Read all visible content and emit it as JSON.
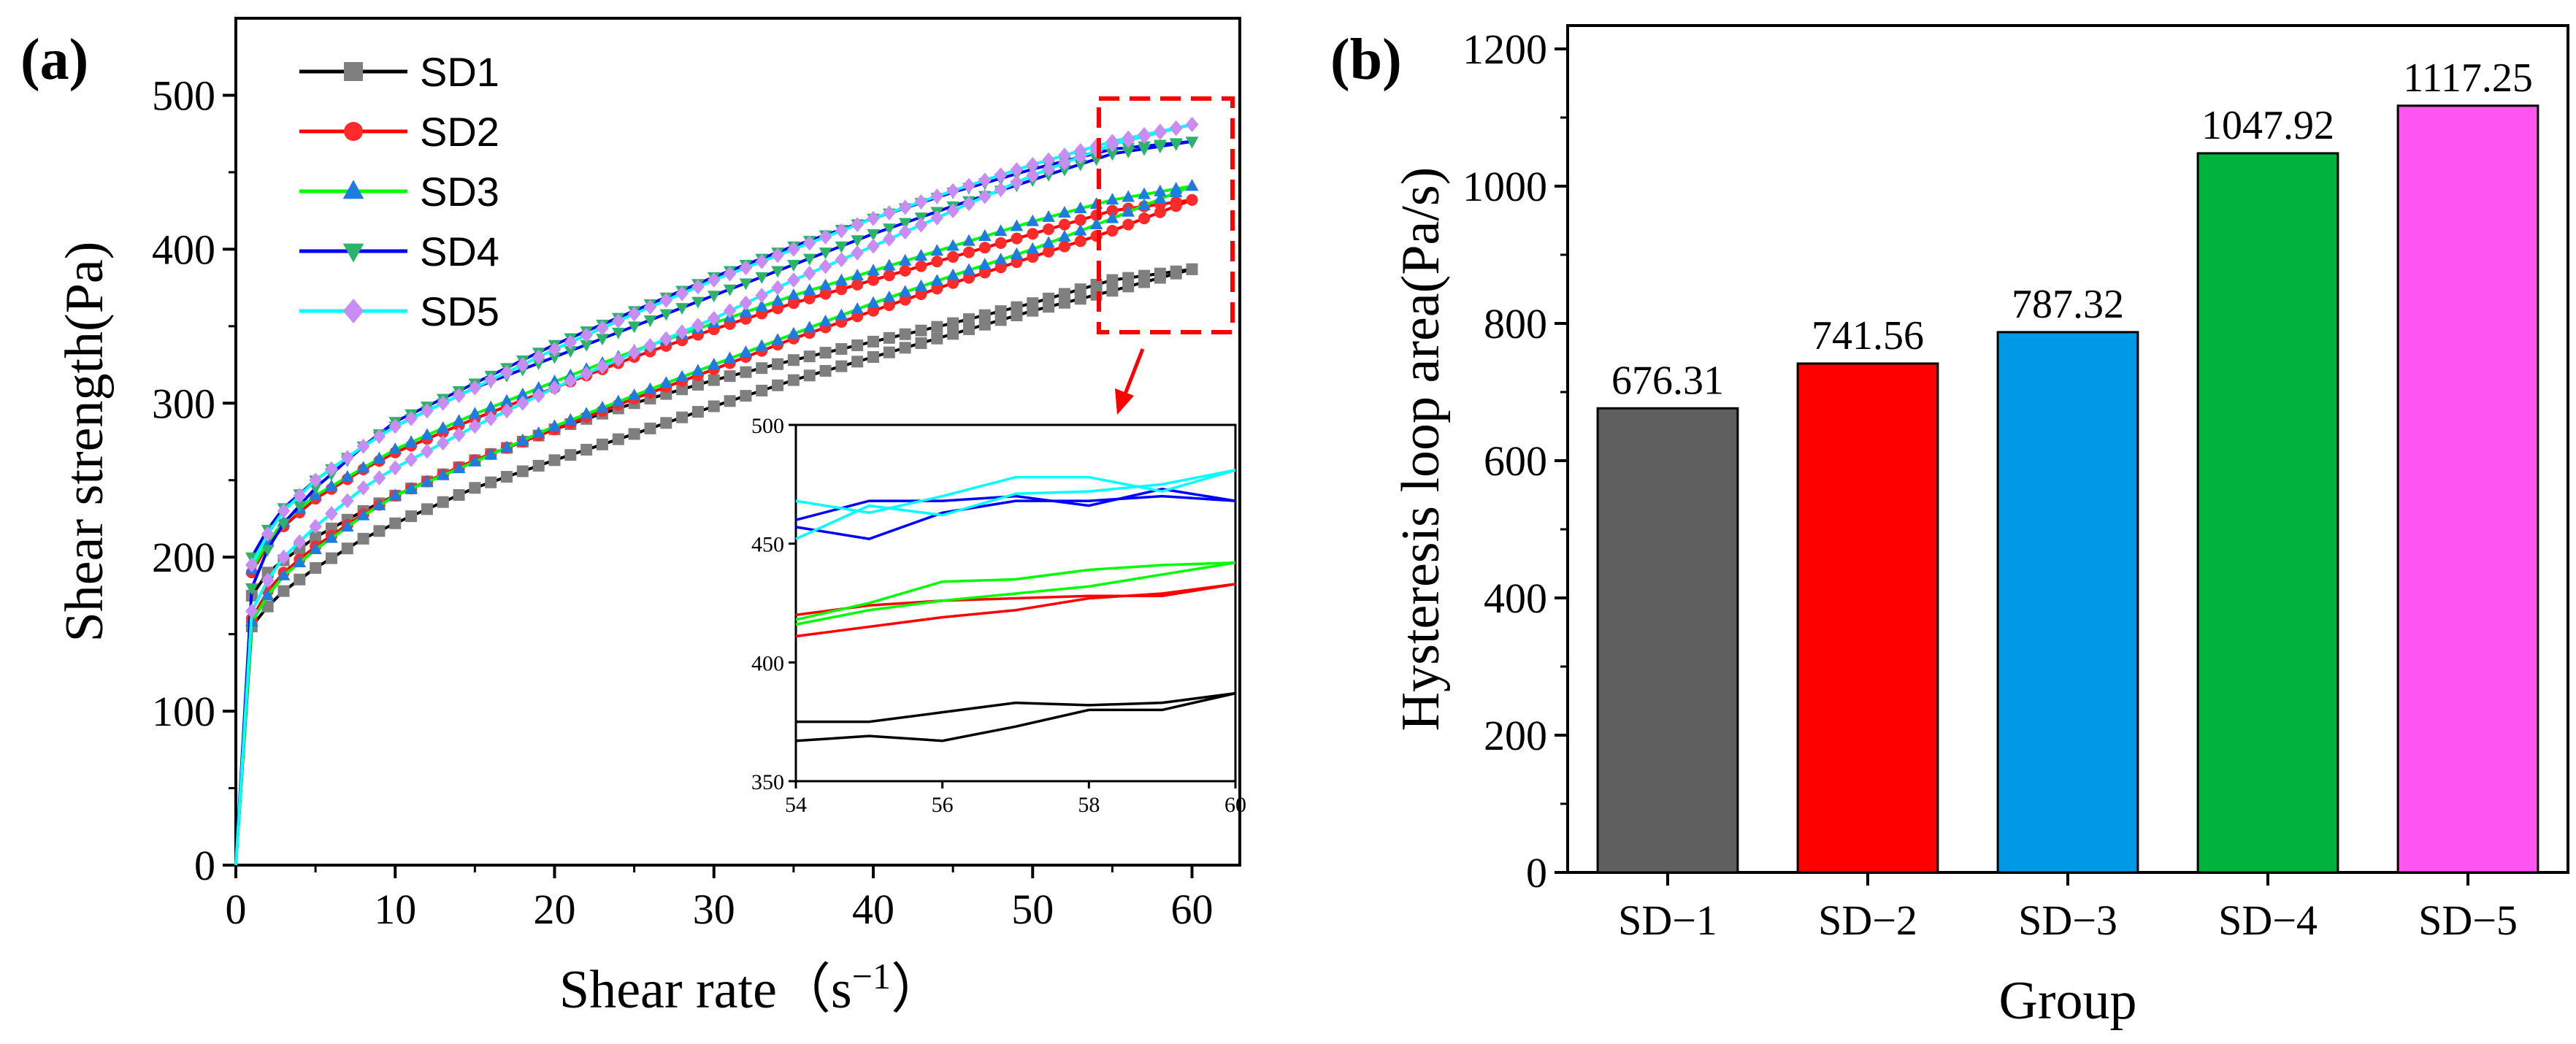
{
  "chart_data": [
    {
      "panel": "(a)",
      "type": "line",
      "xlabel": "Shear rate",
      "xunit": "（s",
      "xunit_exp": "−1",
      "xunit_close": "）",
      "ylabel": "Shear strength(Pa)",
      "xlim": [
        0,
        63
      ],
      "ylim": [
        0,
        550
      ],
      "xticks": [
        0,
        10,
        20,
        30,
        40,
        50,
        60
      ],
      "yticks": [
        0,
        100,
        200,
        300,
        400,
        500
      ],
      "series": [
        {
          "name": "SD1",
          "color": "#7f7f7f",
          "line_color": "#000000",
          "marker": "square",
          "up": [
            [
              0,
              0
            ],
            [
              1,
              155
            ],
            [
              2,
              168
            ],
            [
              3,
              178
            ],
            [
              5,
              193
            ],
            [
              8,
              212
            ],
            [
              10,
              222
            ],
            [
              15,
              245
            ],
            [
              20,
              263
            ],
            [
              25,
              280
            ],
            [
              30,
              298
            ],
            [
              35,
              315
            ],
            [
              40,
              330
            ],
            [
              45,
              345
            ],
            [
              50,
              360
            ],
            [
              55,
              373
            ],
            [
              60,
              387
            ]
          ],
          "down": [
            [
              60,
              387
            ],
            [
              55,
              380
            ],
            [
              50,
              365
            ],
            [
              45,
              352
            ],
            [
              40,
              340
            ],
            [
              35,
              328
            ],
            [
              30,
              315
            ],
            [
              25,
              300
            ],
            [
              20,
              283
            ],
            [
              15,
              263
            ],
            [
              10,
              240
            ],
            [
              8,
              230
            ],
            [
              5,
              213
            ],
            [
              3,
              198
            ],
            [
              2,
              190
            ],
            [
              1,
              175
            ]
          ]
        },
        {
          "name": "SD2",
          "color": "#ff2a2a",
          "line_color": "#ff0000",
          "marker": "circle",
          "up": [
            [
              0,
              0
            ],
            [
              1,
              160
            ],
            [
              2,
              178
            ],
            [
              3,
              190
            ],
            [
              5,
              207
            ],
            [
              8,
              228
            ],
            [
              10,
              240
            ],
            [
              15,
              263
            ],
            [
              20,
              283
            ],
            [
              25,
              303
            ],
            [
              30,
              322
            ],
            [
              35,
              342
            ],
            [
              40,
              360
            ],
            [
              45,
              378
            ],
            [
              50,
              395
            ],
            [
              55,
              412
            ],
            [
              60,
              432
            ]
          ],
          "down": [
            [
              60,
              432
            ],
            [
              55,
              425
            ],
            [
              50,
              410
            ],
            [
              45,
              395
            ],
            [
              40,
              380
            ],
            [
              35,
              365
            ],
            [
              30,
              348
            ],
            [
              25,
              330
            ],
            [
              20,
              310
            ],
            [
              15,
              290
            ],
            [
              10,
              268
            ],
            [
              8,
              257
            ],
            [
              5,
              238
            ],
            [
              3,
              220
            ],
            [
              2,
              208
            ],
            [
              1,
              190
            ]
          ]
        },
        {
          "name": "SD3",
          "color": "#1e7be0",
          "line_color": "#00ff00",
          "marker": "triangle-up",
          "up": [
            [
              0,
              0
            ],
            [
              1,
              158
            ],
            [
              2,
              175
            ],
            [
              3,
              188
            ],
            [
              5,
              205
            ],
            [
              8,
              227
            ],
            [
              10,
              240
            ],
            [
              15,
              262
            ],
            [
              20,
              285
            ],
            [
              25,
              305
            ],
            [
              30,
              325
            ],
            [
              35,
              345
            ],
            [
              40,
              365
            ],
            [
              45,
              383
            ],
            [
              50,
              400
            ],
            [
              55,
              420
            ],
            [
              60,
              441
            ]
          ],
          "down": [
            [
              60,
              441
            ],
            [
              55,
              432
            ],
            [
              50,
              418
            ],
            [
              45,
              402
            ],
            [
              40,
              386
            ],
            [
              35,
              370
            ],
            [
              30,
              352
            ],
            [
              25,
              334
            ],
            [
              20,
              314
            ],
            [
              15,
              293
            ],
            [
              10,
              270
            ],
            [
              8,
              258
            ],
            [
              5,
              240
            ],
            [
              3,
              223
            ],
            [
              2,
              210
            ],
            [
              1,
              192
            ]
          ]
        },
        {
          "name": "SD4",
          "color": "#2bb36a",
          "line_color": "#0000ff",
          "marker": "triangle-down",
          "up": [
            [
              0,
              0
            ],
            [
              1,
              180
            ],
            [
              2,
              205
            ],
            [
              3,
              222
            ],
            [
              5,
              245
            ],
            [
              8,
              272
            ],
            [
              10,
              288
            ],
            [
              15,
              313
            ],
            [
              20,
              338
            ],
            [
              25,
              360
            ],
            [
              30,
              382
            ],
            [
              35,
              402
            ],
            [
              40,
              420
            ],
            [
              45,
              437
            ],
            [
              50,
              452
            ],
            [
              55,
              465
            ],
            [
              60,
              470
            ]
          ],
          "down": [
            [
              60,
              470
            ],
            [
              55,
              462
            ],
            [
              50,
              445
            ],
            [
              45,
              428
            ],
            [
              40,
              410
            ],
            [
              35,
              390
            ],
            [
              30,
              370
            ],
            [
              25,
              350
            ],
            [
              20,
              330
            ],
            [
              15,
              310
            ],
            [
              10,
              285
            ],
            [
              8,
              272
            ],
            [
              5,
              250
            ],
            [
              3,
              232
            ],
            [
              2,
              218
            ],
            [
              1,
              200
            ]
          ]
        },
        {
          "name": "SD5",
          "color": "#c78df2",
          "line_color": "#00ffff",
          "marker": "diamond",
          "up": [
            [
              0,
              0
            ],
            [
              1,
              165
            ],
            [
              2,
              185
            ],
            [
              3,
              200
            ],
            [
              5,
              220
            ],
            [
              8,
              245
            ],
            [
              10,
              258
            ],
            [
              15,
              285
            ],
            [
              20,
              310
            ],
            [
              25,
              333
            ],
            [
              30,
              355
            ],
            [
              35,
              380
            ],
            [
              40,
              402
            ],
            [
              45,
              425
            ],
            [
              50,
              448
            ],
            [
              55,
              468
            ],
            [
              60,
              481
            ]
          ],
          "down": [
            [
              60,
              481
            ],
            [
              55,
              470
            ],
            [
              50,
              455
            ],
            [
              45,
              438
            ],
            [
              40,
              420
            ],
            [
              35,
              400
            ],
            [
              30,
              380
            ],
            [
              25,
              358
            ],
            [
              20,
              335
            ],
            [
              15,
              310
            ],
            [
              10,
              285
            ],
            [
              8,
              272
            ],
            [
              5,
              250
            ],
            [
              3,
              230
            ],
            [
              2,
              215
            ],
            [
              1,
              195
            ]
          ]
        }
      ],
      "inset": {
        "xlim": [
          54,
          60
        ],
        "ylim": [
          350,
          500
        ],
        "xticks": [
          54,
          56,
          58,
          60
        ],
        "yticks": [
          350,
          400,
          450,
          500
        ],
        "series": [
          {
            "name": "SD1",
            "line_color": "#000000",
            "up": [
              [
                54,
                375
              ],
              [
                55,
                375
              ],
              [
                56,
                379
              ],
              [
                57,
                383
              ],
              [
                58,
                382
              ],
              [
                59,
                383
              ],
              [
                60,
                387
              ]
            ],
            "down": [
              [
                54,
                367
              ],
              [
                55,
                369
              ],
              [
                56,
                367
              ],
              [
                57,
                373
              ],
              [
                58,
                380
              ],
              [
                59,
                380
              ],
              [
                60,
                387
              ]
            ]
          },
          {
            "name": "SD2",
            "line_color": "#ff0000",
            "up": [
              [
                54,
                420
              ],
              [
                55,
                424
              ],
              [
                56,
                426
              ],
              [
                57,
                427
              ],
              [
                58,
                428
              ],
              [
                59,
                428
              ],
              [
                60,
                433
              ]
            ],
            "down": [
              [
                54,
                411
              ],
              [
                55,
                415
              ],
              [
                56,
                419
              ],
              [
                57,
                422
              ],
              [
                58,
                427
              ],
              [
                59,
                429
              ],
              [
                60,
                433
              ]
            ]
          },
          {
            "name": "SD3",
            "line_color": "#00ff00",
            "up": [
              [
                54,
                418
              ],
              [
                55,
                425
              ],
              [
                56,
                434
              ],
              [
                57,
                435
              ],
              [
                58,
                439
              ],
              [
                59,
                441
              ],
              [
                60,
                442
              ]
            ],
            "down": [
              [
                54,
                416
              ],
              [
                55,
                422
              ],
              [
                56,
                426
              ],
              [
                57,
                429
              ],
              [
                58,
                432
              ],
              [
                59,
                437
              ],
              [
                60,
                442
              ]
            ]
          },
          {
            "name": "SD4",
            "line_color": "#0000ff",
            "up": [
              [
                54,
                460
              ],
              [
                55,
                468
              ],
              [
                56,
                468
              ],
              [
                57,
                470
              ],
              [
                58,
                466
              ],
              [
                59,
                473
              ],
              [
                60,
                468
              ]
            ],
            "down": [
              [
                54,
                457
              ],
              [
                55,
                452
              ],
              [
                56,
                463
              ],
              [
                57,
                468
              ],
              [
                58,
                468
              ],
              [
                59,
                470
              ],
              [
                60,
                468
              ]
            ]
          },
          {
            "name": "SD5",
            "line_color": "#00ffff",
            "up": [
              [
                54,
                468
              ],
              [
                55,
                463
              ],
              [
                56,
                470
              ],
              [
                57,
                478
              ],
              [
                58,
                478
              ],
              [
                59,
                472
              ],
              [
                60,
                481
              ]
            ],
            "down": [
              [
                54,
                452
              ],
              [
                55,
                466
              ],
              [
                56,
                462
              ],
              [
                57,
                471
              ],
              [
                58,
                472
              ],
              [
                59,
                475
              ],
              [
                60,
                481
              ]
            ]
          }
        ]
      }
    },
    {
      "panel": "(b)",
      "type": "bar",
      "xlabel": "Group",
      "ylabel": "Hysteresis loop area(Pa/s)",
      "ylim": [
        0,
        1200
      ],
      "yticks": [
        0,
        200,
        400,
        600,
        800,
        1000,
        1200
      ],
      "categories": [
        "SD−1",
        "SD−2",
        "SD−3",
        "SD−4",
        "SD−5"
      ],
      "values": [
        676.31,
        741.56,
        787.32,
        1047.92,
        1117.25
      ],
      "value_labels": [
        "676.31",
        "741.56",
        "787.32",
        "1047.92",
        "1117.25"
      ],
      "colors": [
        "#5f5f5f",
        "#ff0000",
        "#0099e6",
        "#00b33c",
        "#ff55f0"
      ]
    }
  ]
}
